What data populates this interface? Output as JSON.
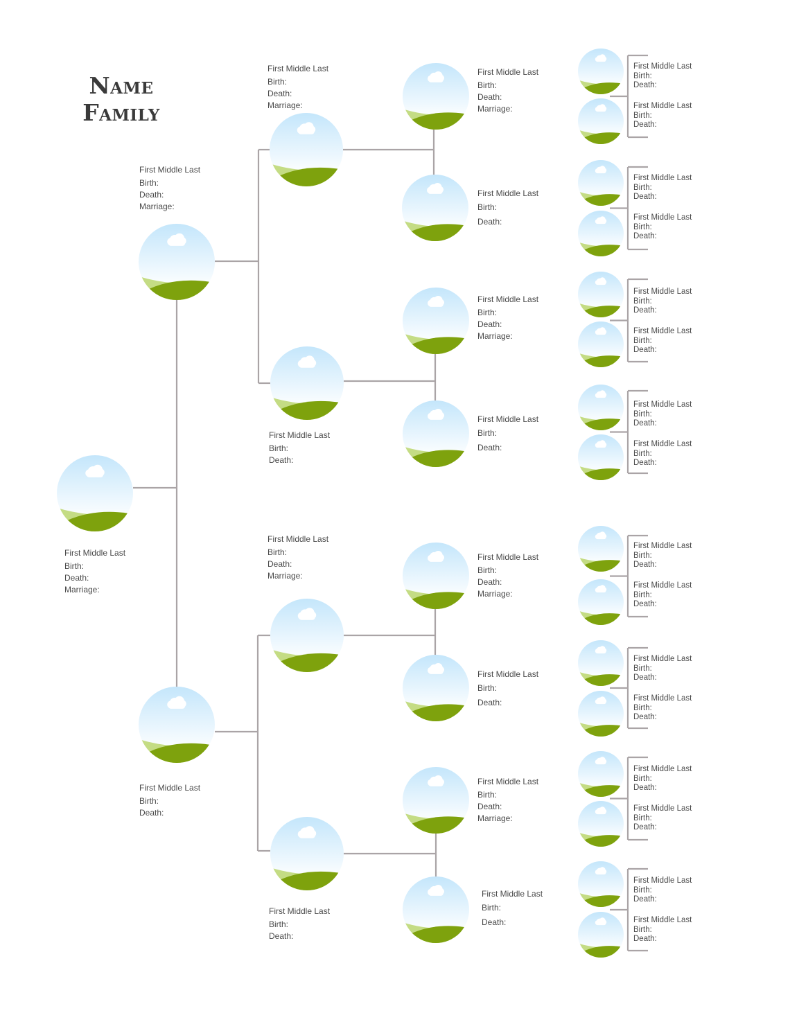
{
  "title": {
    "line1": "Name",
    "line2": "Family"
  },
  "labels": {
    "birth": "Birth:",
    "death": "Death:",
    "marriage": "Marriage:"
  },
  "colors": {
    "sky_top": "#c4e6fb",
    "sky_bottom": "#ffffff",
    "hill_light": "#c4dc84",
    "hill_dark": "#7ea20d",
    "cloud": "#ffffff",
    "connector": "#aaa4a6",
    "text": "#4a4a4a"
  },
  "people": [
    {
      "name": "First Middle Last",
      "marriage": true
    },
    {
      "name": "First Middle Last",
      "marriage": true
    },
    {
      "name": "First Middle Last",
      "marriage": false
    },
    {
      "name": "First Middle Last",
      "marriage": true
    },
    {
      "name": "First Middle Last",
      "marriage": false
    },
    {
      "name": "First Middle Last",
      "marriage": true
    },
    {
      "name": "First Middle Last",
      "marriage": false
    },
    {
      "name": "First Middle Last",
      "marriage": true
    },
    {
      "name": "First Middle Last",
      "marriage": false
    },
    {
      "name": "First Middle Last",
      "marriage": true
    },
    {
      "name": "First Middle Last",
      "marriage": false
    },
    {
      "name": "First Middle Last",
      "marriage": true
    },
    {
      "name": "First Middle Last",
      "marriage": false
    },
    {
      "name": "First Middle Last",
      "marriage": true
    },
    {
      "name": "First Middle Last",
      "marriage": false
    },
    {
      "name": "First Middle Last",
      "marriage": false
    },
    {
      "name": "First Middle Last",
      "marriage": false
    },
    {
      "name": "First Middle Last",
      "marriage": false
    },
    {
      "name": "First Middle Last",
      "marriage": false
    },
    {
      "name": "First Middle Last",
      "marriage": false
    },
    {
      "name": "First Middle Last",
      "marriage": false
    },
    {
      "name": "First Middle Last",
      "marriage": false
    },
    {
      "name": "First Middle Last",
      "marriage": false
    },
    {
      "name": "First Middle Last",
      "marriage": false
    },
    {
      "name": "First Middle Last",
      "marriage": false
    },
    {
      "name": "First Middle Last",
      "marriage": false
    },
    {
      "name": "First Middle Last",
      "marriage": false
    },
    {
      "name": "First Middle Last",
      "marriage": false
    },
    {
      "name": "First Middle Last",
      "marriage": false
    },
    {
      "name": "First Middle Last",
      "marriage": false
    },
    {
      "name": "First Middle Last",
      "marriage": false
    }
  ]
}
